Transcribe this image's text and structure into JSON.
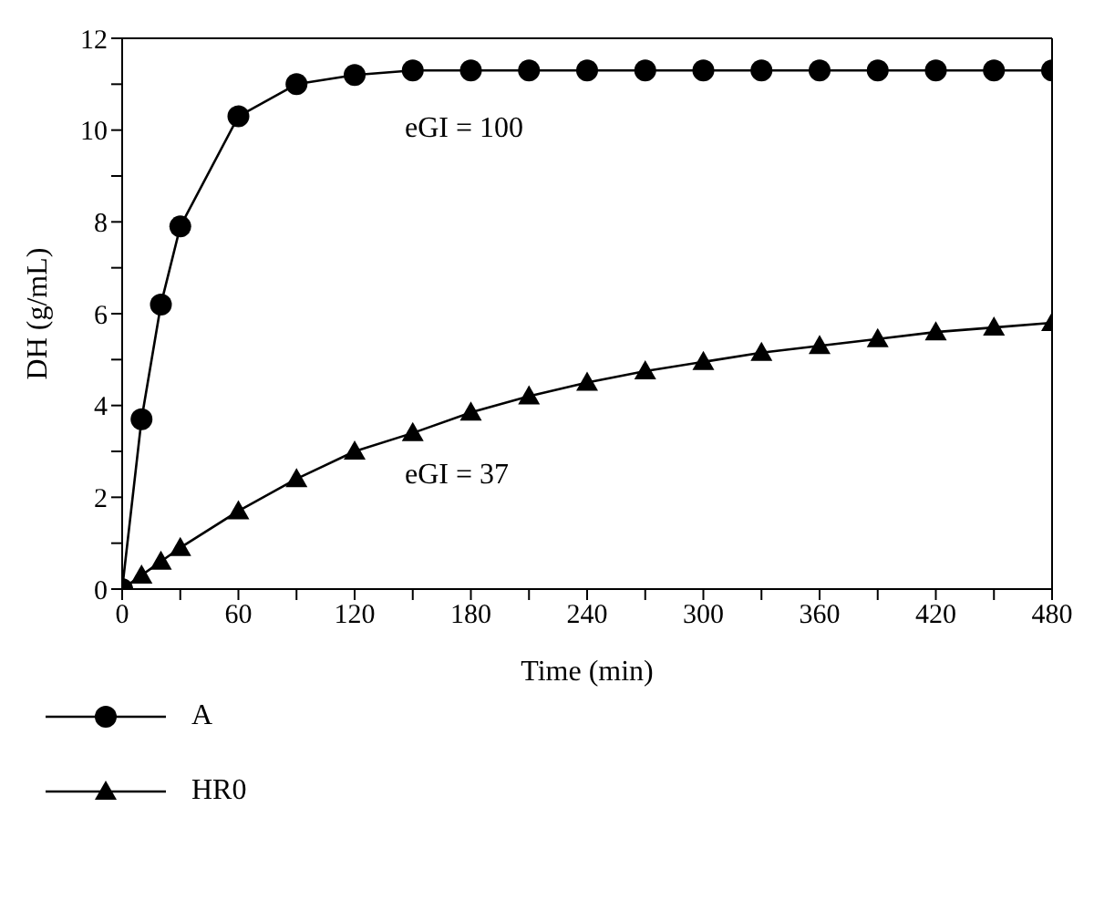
{
  "chart_data": {
    "type": "line",
    "xlabel": "Time (min)",
    "ylabel": "DH (g/mL)",
    "x": [
      0,
      10,
      20,
      30,
      60,
      90,
      120,
      150,
      180,
      210,
      240,
      270,
      300,
      330,
      360,
      390,
      420,
      450,
      480
    ],
    "series": [
      {
        "name": "A",
        "color": "#000000",
        "marker": "circle",
        "values": [
          0,
          3.7,
          6.2,
          7.9,
          10.3,
          11.0,
          11.2,
          11.3,
          11.3,
          11.3,
          11.3,
          11.3,
          11.3,
          11.3,
          11.3,
          11.3,
          11.3,
          11.3,
          11.3
        ]
      },
      {
        "name": "HR0",
        "color": "#000000",
        "marker": "triangle",
        "values": [
          0,
          0.3,
          0.6,
          0.9,
          1.7,
          2.4,
          3.0,
          3.4,
          3.85,
          4.2,
          4.5,
          4.75,
          4.95,
          5.15,
          5.3,
          5.45,
          5.6,
          5.7,
          5.8
        ]
      }
    ],
    "xlim": [
      0,
      480
    ],
    "xticks": [
      0,
      {
        "value": 30,
        "label": null
      },
      60,
      {
        "value": 90,
        "label": null
      },
      120,
      {
        "value": 150,
        "label": null
      },
      180,
      {
        "value": 210,
        "label": null
      },
      240,
      {
        "value": 270,
        "label": null
      },
      300,
      {
        "value": 330,
        "label": null
      },
      360,
      {
        "value": 390,
        "label": null
      },
      420,
      {
        "value": 450,
        "label": null
      },
      480
    ],
    "ylim": [
      0,
      12
    ],
    "yticks": [
      0,
      {
        "value": 1,
        "label": null
      },
      2,
      {
        "value": 3,
        "label": null
      },
      4,
      {
        "value": 5,
        "label": null
      },
      6,
      {
        "value": 7,
        "label": null
      },
      8,
      {
        "value": 9,
        "label": null
      },
      10,
      {
        "value": 11,
        "label": null
      },
      12
    ],
    "annotations": [
      "eGI = 100",
      "eGI = 37"
    ],
    "grid": false,
    "legend": "bottom left",
    "line_style": "solid"
  }
}
